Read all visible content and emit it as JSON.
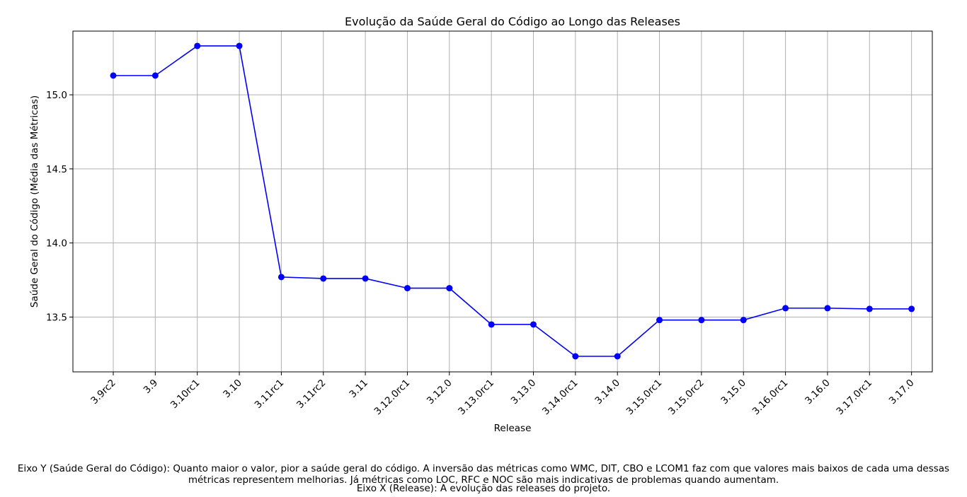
{
  "chart_data": {
    "type": "line",
    "title": "Evolução da Saúde Geral do Código ao Longo das Releases",
    "xlabel": "Release",
    "ylabel": "Saúde Geral do Código (Média das Métricas)",
    "categories": [
      "3.9rc2",
      "3.9",
      "3.10rc1",
      "3.10",
      "3.11rc1",
      "3.11rc2",
      "3.11",
      "3.12.0rc1",
      "3.12.0",
      "3.13.0rc1",
      "3.13.0",
      "3.14.0rc1",
      "3.14.0",
      "3.15.0rc1",
      "3.15.0rc2",
      "3.15.0",
      "3.16.0rc1",
      "3.16.0",
      "3.17.0rc1",
      "3.17.0"
    ],
    "series": [
      {
        "values": [
          15.13,
          15.13,
          15.33,
          15.33,
          13.77,
          13.76,
          13.76,
          13.695,
          13.695,
          13.45,
          13.45,
          13.235,
          13.235,
          13.48,
          13.48,
          13.48,
          13.56,
          13.56,
          13.555,
          13.555
        ]
      }
    ],
    "yticks": [
      "13.5",
      "14.0",
      "14.5",
      "15.0"
    ],
    "ytick_values": [
      13.5,
      14.0,
      14.5,
      15.0
    ],
    "ylim": [
      13.13,
      15.43
    ],
    "grid": true,
    "line_color": "#0000ff",
    "marker": "circle"
  },
  "captions": {
    "y_explanation": "Eixo Y (Saúde Geral do Código): Quanto maior o valor, pior a saúde geral do código. A inversão das métricas como WMC, DIT, CBO e LCOM1 faz com que valores mais baixos de cada uma dessas métricas representem melhorias. Já métricas como LOC, RFC e NOC são mais indicativas de problemas quando aumentam.",
    "x_explanation": "Eixo X (Release): A evolução das releases do projeto."
  }
}
